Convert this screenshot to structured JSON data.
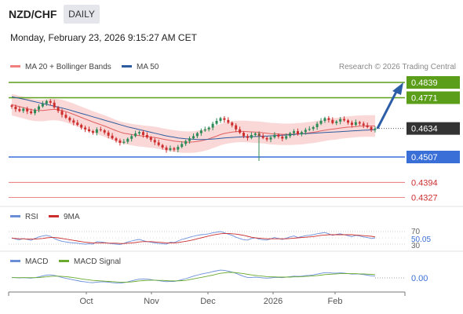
{
  "header": {
    "pair": "NZD/CHF",
    "timeframe": "DAILY",
    "datetime": "Monday, February 23, 2026 9:15:27 AM CET"
  },
  "legend": {
    "ma20": {
      "label": "MA 20 + Bollinger Bands",
      "color": "#f08080"
    },
    "ma50": {
      "label": "MA 50",
      "color": "#2e5c9e"
    },
    "copyright": "Research © 2026 Trading Central"
  },
  "colors": {
    "up": "#2e8b57",
    "down": "#cc2e2e",
    "band_fill": "#fbd8d8",
    "target": "#5a9e1a",
    "pivot": "#3a6fd8",
    "support": "#e06060",
    "arrow": "#2c5ea8"
  },
  "chart_data": [
    {
      "type": "candlestick",
      "x_ticks": [
        "Oct",
        "Nov",
        "Dec",
        "2026",
        "Feb"
      ],
      "current_price": 0.4634,
      "levels": [
        {
          "value": 0.4839,
          "label": "0.4839",
          "kind": "resistance"
        },
        {
          "value": 0.4771,
          "label": "0.4771",
          "kind": "resistance"
        },
        {
          "value": 0.4507,
          "label": "0.4507",
          "kind": "pivot"
        },
        {
          "value": 0.4394,
          "label": "0.4394",
          "kind": "support"
        },
        {
          "value": 0.4327,
          "label": "0.4327",
          "kind": "support"
        }
      ],
      "current_label": "0.4634",
      "closes": [
        0.4731,
        0.472,
        0.4712,
        0.4722,
        0.471,
        0.4702,
        0.4718,
        0.4732,
        0.4744,
        0.4756,
        0.4749,
        0.4728,
        0.4712,
        0.4695,
        0.4682,
        0.467,
        0.466,
        0.465,
        0.4638,
        0.463,
        0.4622,
        0.4615,
        0.463,
        0.4626,
        0.4616,
        0.4602,
        0.459,
        0.458,
        0.457,
        0.4575,
        0.4588,
        0.46,
        0.4612,
        0.4618,
        0.4605,
        0.4594,
        0.4583,
        0.4572,
        0.456,
        0.4549,
        0.4538,
        0.4546,
        0.454,
        0.4552,
        0.4565,
        0.4578,
        0.459,
        0.46,
        0.4613,
        0.4625,
        0.463,
        0.4638,
        0.4655,
        0.4668,
        0.468,
        0.4672,
        0.466,
        0.4648,
        0.463,
        0.4615,
        0.46,
        0.4592,
        0.4605,
        0.4612,
        0.46,
        0.4592,
        0.4585,
        0.4594,
        0.4606,
        0.4598,
        0.4589,
        0.46,
        0.4613,
        0.4622,
        0.4608,
        0.4618,
        0.4628,
        0.4632,
        0.464,
        0.4655,
        0.4668,
        0.468,
        0.4672,
        0.4658,
        0.4665,
        0.4676,
        0.467,
        0.466,
        0.465,
        0.4662,
        0.4656,
        0.4648,
        0.464,
        0.4628,
        0.4634
      ],
      "ma20_values": [
        0.474,
        0.4736,
        0.4731,
        0.4727,
        0.4722,
        0.4718,
        0.4715,
        0.4714,
        0.4714,
        0.4716,
        0.4718,
        0.4719,
        0.4717,
        0.4714,
        0.4709,
        0.4703,
        0.4697,
        0.469,
        0.4683,
        0.4676,
        0.467,
        0.4663,
        0.4657,
        0.4651,
        0.4645,
        0.4638,
        0.4631,
        0.4624,
        0.4618,
        0.4613,
        0.461,
        0.4607,
        0.4604,
        0.4602,
        0.46,
        0.4598,
        0.4596,
        0.4594,
        0.4591,
        0.4587,
        0.4584,
        0.4581,
        0.4578,
        0.4576,
        0.4574,
        0.4573,
        0.4573,
        0.4574,
        0.4576,
        0.4579,
        0.4583,
        0.4588,
        0.4594,
        0.46,
        0.4607,
        0.4612,
        0.4615,
        0.4618,
        0.462,
        0.4621,
        0.4621,
        0.462,
        0.4619,
        0.4618,
        0.4617,
        0.4615,
        0.4613,
        0.4611,
        0.461,
        0.4609,
        0.4608,
        0.4608,
        0.4608,
        0.4609,
        0.461,
        0.4611,
        0.4613,
        0.4615,
        0.4617,
        0.462,
        0.4623,
        0.4626,
        0.4629,
        0.4631,
        0.4633,
        0.4636,
        0.4638,
        0.464,
        0.4641,
        0.4643,
        0.4644,
        0.4645,
        0.4645,
        0.4645,
        0.4645
      ],
      "ma50_values": [
        0.4775,
        0.4772,
        0.4768,
        0.4765,
        0.4761,
        0.4757,
        0.4753,
        0.4749,
        0.4745,
        0.4741,
        0.4737,
        0.4733,
        0.4729,
        0.4725,
        0.4721,
        0.4716,
        0.4711,
        0.4706,
        0.4701,
        0.4696,
        0.4691,
        0.4686,
        0.4681,
        0.4676,
        0.4671,
        0.4666,
        0.4661,
        0.4656,
        0.4651,
        0.4646,
        0.4641,
        0.4637,
        0.4633,
        0.4629,
        0.4625,
        0.4621,
        0.4617,
        0.4613,
        0.4609,
        0.4605,
        0.4601,
        0.4598,
        0.4595,
        0.4592,
        0.459,
        0.4588,
        0.4587,
        0.4586,
        0.4585,
        0.4585,
        0.4585,
        0.4586,
        0.4587,
        0.4588,
        0.459,
        0.4592,
        0.4593,
        0.4594,
        0.4595,
        0.4596,
        0.4597,
        0.4597,
        0.4598,
        0.4598,
        0.4599,
        0.46,
        0.46,
        0.4601,
        0.4602,
        0.4603,
        0.4604,
        0.4605,
        0.4606,
        0.4607,
        0.4609,
        0.461,
        0.4611,
        0.4612,
        0.4613,
        0.4614,
        0.4615,
        0.4616,
        0.4617,
        0.4618,
        0.4619,
        0.462,
        0.4621,
        0.4622,
        0.4623,
        0.4624,
        0.4625,
        0.4626,
        0.4627,
        0.4628,
        0.4628
      ],
      "band_width": 0.0048,
      "projection": {
        "from": 0.4634,
        "to": 0.4839
      }
    },
    {
      "type": "line",
      "legend": [
        {
          "label": "RSI",
          "color": "#6a8fd8"
        },
        {
          "label": "9MA",
          "color": "#cc2e2e"
        }
      ],
      "y_ticks": [
        "70",
        "30"
      ],
      "value_label": "50.05",
      "ylim": [
        20,
        80
      ],
      "rsi": [
        50,
        46,
        44,
        48,
        45,
        42,
        48,
        53,
        56,
        58,
        55,
        48,
        43,
        39,
        37,
        35,
        34,
        33,
        31,
        30,
        31,
        30,
        38,
        37,
        35,
        33,
        31,
        30,
        29,
        32,
        37,
        40,
        43,
        45,
        41,
        38,
        36,
        34,
        32,
        31,
        30,
        36,
        35,
        40,
        45,
        48,
        52,
        55,
        58,
        60,
        61,
        63,
        66,
        68,
        70,
        66,
        62,
        58,
        52,
        48,
        44,
        43,
        48,
        50,
        46,
        44,
        43,
        47,
        51,
        48,
        45,
        49,
        53,
        56,
        51,
        54,
        57,
        58,
        60,
        63,
        65,
        67,
        63,
        58,
        61,
        63,
        60,
        57,
        54,
        58,
        56,
        53,
        51,
        48,
        50
      ],
      "rsi_ma": [
        49,
        48,
        47,
        47,
        46,
        46,
        46,
        47,
        48,
        50,
        51,
        51,
        50,
        48,
        46,
        44,
        42,
        40,
        38,
        36,
        35,
        34,
        34,
        34,
        34,
        33,
        33,
        33,
        32,
        32,
        33,
        34,
        35,
        37,
        38,
        38,
        38,
        37,
        36,
        35,
        34,
        34,
        34,
        35,
        37,
        39,
        41,
        44,
        47,
        50,
        53,
        56,
        59,
        61,
        63,
        64,
        64,
        63,
        62,
        60,
        58,
        55,
        52,
        50,
        49,
        48,
        47,
        47,
        47,
        47,
        47,
        47,
        48,
        49,
        50,
        51,
        52,
        53,
        54,
        56,
        58,
        59,
        60,
        60,
        60,
        60,
        60,
        60,
        60,
        59,
        58,
        57,
        56,
        55,
        53
      ]
    },
    {
      "type": "line",
      "legend": [
        {
          "label": "MACD",
          "color": "#6a8fd8"
        },
        {
          "label": "MACD Signal",
          "color": "#6aaa2e"
        }
      ],
      "value_label": "0.00",
      "ylim": [
        -0.004,
        0.004
      ],
      "macd": [
        0.0002,
        0.0001,
        0.0,
        0.0001,
        0.0,
        -0.0001,
        0.0001,
        0.0004,
        0.0008,
        0.0011,
        0.0012,
        0.001,
        0.0006,
        0.0002,
        -0.0002,
        -0.0005,
        -0.0008,
        -0.0011,
        -0.0014,
        -0.0016,
        -0.0018,
        -0.0019,
        -0.0017,
        -0.0016,
        -0.0016,
        -0.0017,
        -0.0019,
        -0.002,
        -0.0021,
        -0.0019,
        -0.0016,
        -0.0012,
        -0.0008,
        -0.0005,
        -0.0004,
        -0.0005,
        -0.0007,
        -0.0009,
        -0.0011,
        -0.0013,
        -0.0015,
        -0.0014,
        -0.0014,
        -0.0011,
        -0.0007,
        -0.0003,
        0.0002,
        0.0007,
        0.0011,
        0.0015,
        0.0018,
        0.0021,
        0.0025,
        0.0028,
        0.0031,
        0.003,
        0.0027,
        0.0023,
        0.0018,
        0.0012,
        0.0006,
        0.0002,
        0.0002,
        0.0003,
        0.0002,
        0.0,
        -0.0001,
        0.0,
        0.0002,
        0.0002,
        0.0001,
        0.0003,
        0.0005,
        0.0007,
        0.0006,
        0.0007,
        0.0009,
        0.001,
        0.0012,
        0.0015,
        0.0018,
        0.0021,
        0.0021,
        0.0019,
        0.0019,
        0.002,
        0.0019,
        0.0017,
        0.0015,
        0.0016,
        0.0015,
        0.0013,
        0.0011,
        0.0008,
        0.0007
      ],
      "signal": [
        0.0001,
        0.0001,
        0.0001,
        0.0001,
        0.0001,
        0.0001,
        0.0001,
        0.0001,
        0.0003,
        0.0004,
        0.0006,
        0.0007,
        0.0007,
        0.0006,
        0.0005,
        0.0003,
        0.0001,
        -0.0001,
        -0.0004,
        -0.0006,
        -0.0008,
        -0.001,
        -0.0011,
        -0.0012,
        -0.0013,
        -0.0014,
        -0.0015,
        -0.0016,
        -0.0017,
        -0.0017,
        -0.0017,
        -0.0016,
        -0.0014,
        -0.0012,
        -0.0011,
        -0.001,
        -0.0009,
        -0.0009,
        -0.001,
        -0.001,
        -0.0011,
        -0.0012,
        -0.0012,
        -0.0012,
        -0.0011,
        -0.001,
        -0.0007,
        -0.0004,
        -0.0001,
        0.0002,
        0.0005,
        0.0008,
        0.0011,
        0.0015,
        0.0018,
        0.002,
        0.0022,
        0.0022,
        0.0021,
        0.0019,
        0.0017,
        0.0014,
        0.0012,
        0.001,
        0.0008,
        0.0007,
        0.0005,
        0.0004,
        0.0004,
        0.0003,
        0.0003,
        0.0003,
        0.0003,
        0.0004,
        0.0004,
        0.0005,
        0.0006,
        0.0007,
        0.0008,
        0.0009,
        0.0011,
        0.0013,
        0.0014,
        0.0015,
        0.0016,
        0.0017,
        0.0017,
        0.0017,
        0.0017,
        0.0017,
        0.0016,
        0.0016,
        0.0015,
        0.0014,
        0.0013
      ]
    }
  ]
}
